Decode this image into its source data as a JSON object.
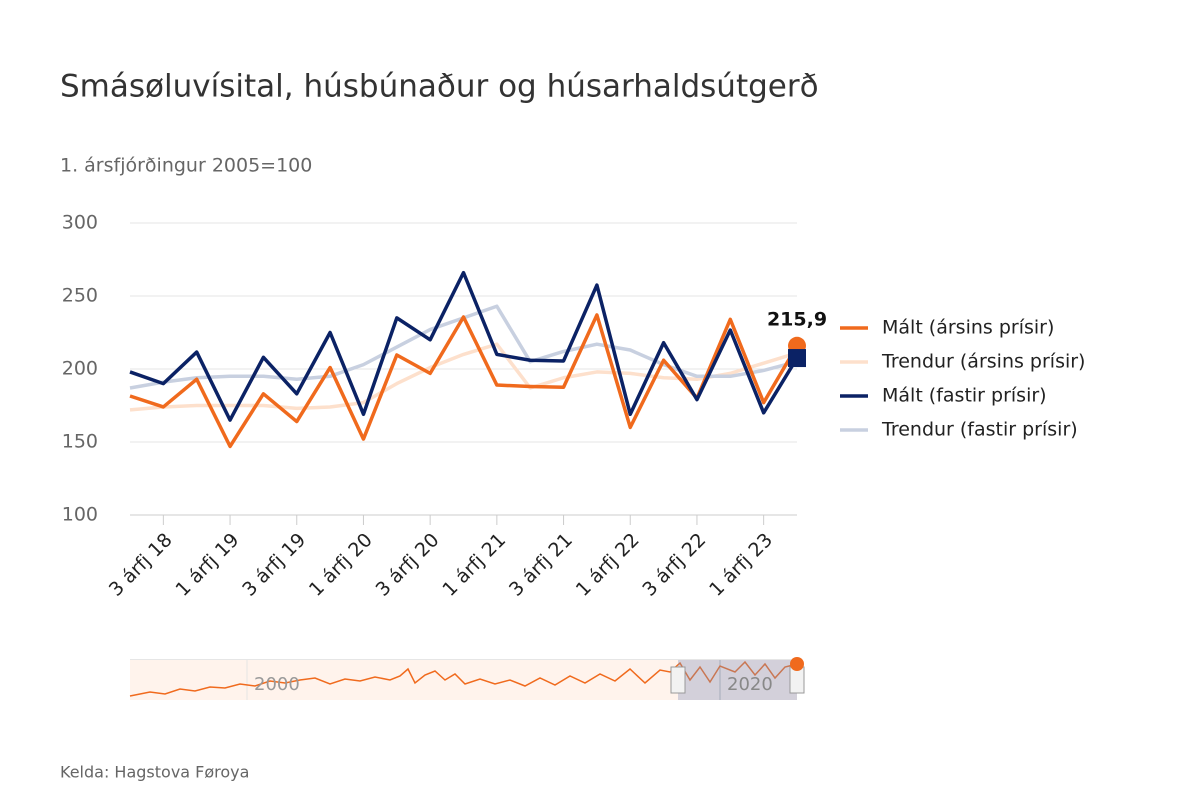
{
  "chart_data": {
    "type": "line",
    "title": "Smásøluvísital, húsbúnaður og húsarhaldsútgerð",
    "subtitle": "1. ársfjórðingur 2005=100",
    "source": "Kelda: Hagstova Føroya",
    "categories": [
      null,
      "3 árfj 18",
      null,
      "1 árfj 19",
      null,
      "3 árfj 19",
      null,
      "1 árfj 20",
      null,
      "3 árfj 20",
      null,
      "1 árfj 21",
      null,
      "3 árfj 21",
      null,
      "1 árfj 22",
      null,
      "3 árfj 22",
      null,
      "1 árfj 23",
      null
    ],
    "series": [
      {
        "name": "Mált (ársins prísir)",
        "color": "#f06a1d",
        "values": [
          181.5,
          174,
          193,
          147,
          183,
          164,
          201,
          152,
          209.6,
          197,
          235.6,
          189,
          188,
          187.5,
          237,
          160,
          206,
          180,
          234,
          177,
          215.9
        ],
        "value_labels": [
          null,
          null,
          null,
          null,
          null,
          null,
          null,
          null,
          null,
          null,
          null,
          null,
          null,
          null,
          null,
          null,
          null,
          null,
          null,
          null,
          "215,9"
        ]
      },
      {
        "name": "Trendur (ársins prísir)",
        "color": "#fde0cc",
        "values": [
          172,
          174,
          175,
          175,
          175,
          173,
          174,
          177,
          190,
          201,
          210,
          217,
          187,
          194,
          198,
          197,
          194,
          193,
          197,
          204,
          211
        ]
      },
      {
        "name": "Mált (fastir prísir)",
        "color": "#0b2265",
        "values": [
          198,
          190,
          211.6,
          165,
          208,
          183,
          225,
          169,
          235,
          220,
          266,
          210,
          206,
          205.5,
          257.5,
          169,
          218,
          179,
          226.7,
          170,
          207.5
        ]
      },
      {
        "name": "Trendur (fastir prísir)",
        "color": "#c8d0e0",
        "values": [
          187,
          191,
          194,
          195,
          195,
          193,
          195,
          203,
          215,
          227,
          235,
          243,
          205,
          212,
          217,
          213,
          203,
          195,
          195,
          199,
          205
        ]
      }
    ],
    "ylim": [
      100,
      300
    ],
    "yticks": [
      100,
      150,
      200,
      250,
      300
    ],
    "grid": true,
    "navigator": {
      "labels": [
        "2000",
        "2020"
      ]
    }
  }
}
